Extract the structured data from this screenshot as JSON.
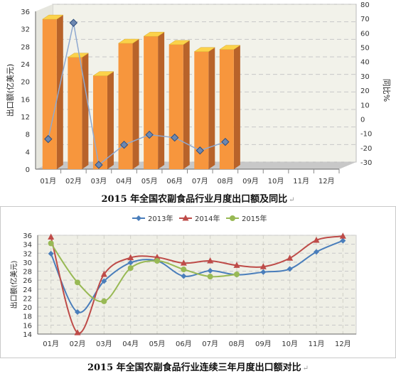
{
  "captions": {
    "chart1": "2015 年全国农副食品行业月度出口额及同比",
    "chart2": "2015 年全国农副食品行业连续三年月度出口额对比",
    "return_mark": "↵"
  },
  "chart_data": [
    {
      "type": "bar",
      "categories": [
        "01月",
        "02月",
        "03月",
        "04月",
        "05月",
        "06月",
        "07月",
        "08月",
        "09月",
        "10月",
        "11月",
        "12月"
      ],
      "series": [
        {
          "values": [
            34.2,
            25.5,
            21.3,
            28.7,
            30.3,
            28.4,
            26.8,
            27.3,
            null,
            null,
            null,
            null
          ],
          "color": "#f7963d"
        },
        {
          "values": [
            -9,
            72,
            -27,
            -13,
            -6,
            -8,
            -17,
            -11,
            null,
            null,
            null,
            null
          ],
          "color": "#9ab4d6",
          "axis": "right"
        }
      ],
      "ylabel": "出口额(亿美元)",
      "y2label": "同比%",
      "ylim": [
        0,
        36
      ],
      "yticks": [
        0,
        4,
        8,
        12,
        16,
        20,
        24,
        28,
        32,
        36
      ],
      "y2lim": [
        -30,
        80
      ],
      "y2ticks": [
        -30,
        -20,
        -10,
        0,
        10,
        20,
        30,
        40,
        50,
        60,
        70,
        80
      ],
      "grid": true
    },
    {
      "type": "line",
      "categories": [
        "01月",
        "02月",
        "03月",
        "04月",
        "05月",
        "06月",
        "07月",
        "08月",
        "09月",
        "10月",
        "11月",
        "12月"
      ],
      "series": [
        {
          "name": "2013年",
          "values": [
            31.9,
            18.9,
            25.8,
            29.9,
            30.3,
            26.9,
            28.1,
            27.2,
            27.8,
            28.5,
            32.3,
            34.8
          ],
          "color": "#4a7ebb",
          "marker": "diamond"
        },
        {
          "name": "2014年",
          "values": [
            35.6,
            14.3,
            27.3,
            31.0,
            31.1,
            29.8,
            30.3,
            29.3,
            29.0,
            30.9,
            34.9,
            35.8
          ],
          "color": "#be4b48",
          "marker": "triangle"
        },
        {
          "name": "2015年",
          "values": [
            34.2,
            25.5,
            21.3,
            28.7,
            30.3,
            28.4,
            26.8,
            27.3,
            null,
            null,
            null,
            null
          ],
          "color": "#98b954",
          "marker": "circle"
        }
      ],
      "ylabel": "出口额(亿美元)",
      "ylim": [
        14,
        36
      ],
      "yticks": [
        14,
        16,
        18,
        20,
        22,
        24,
        26,
        28,
        30,
        32,
        34,
        36
      ],
      "legend": "top-center",
      "grid": true
    }
  ]
}
